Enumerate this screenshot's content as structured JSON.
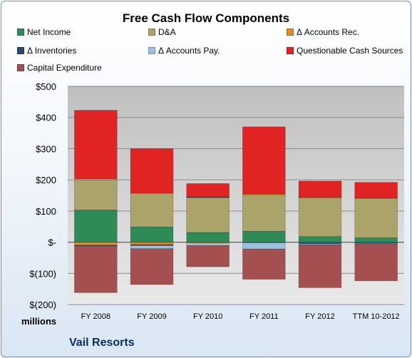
{
  "title": "Free Cash Flow Components",
  "company": "Vail Resorts",
  "units_label": "millions",
  "chart_data": {
    "type": "bar",
    "stacked": true,
    "title": "Free Cash Flow Components",
    "categories": [
      "FY 2008",
      "FY 2009",
      "FY 2010",
      "FY 2011",
      "FY 2012",
      "TTM 10-2012"
    ],
    "ylim": [
      -200,
      500
    ],
    "yticks": [
      -200,
      -100,
      0,
      100,
      200,
      300,
      400,
      500
    ],
    "ytick_labels": [
      "$(200)",
      "$(100)",
      "$-",
      "$100",
      "$200",
      "$300",
      "$400",
      "$500"
    ],
    "grid": true,
    "legend_position": "top",
    "series": [
      {
        "name": "Net Income",
        "color": "#2e8a57",
        "values": [
          103,
          49,
          31,
          35,
          18,
          14
        ]
      },
      {
        "name": "D&A",
        "color": "#aaa46a",
        "values": [
          97,
          108,
          112,
          117,
          125,
          127
        ]
      },
      {
        "name": "Δ Accounts Rec.",
        "color": "#e08a2e",
        "values": [
          -10,
          -8,
          -3,
          3,
          1,
          1
        ]
      },
      {
        "name": "Δ Inventories",
        "color": "#2c4a6b",
        "values": [
          -2,
          -3,
          2,
          -2,
          -5,
          -4
        ]
      },
      {
        "name": "Δ Accounts Pay.",
        "color": "#9cc0e0",
        "values": [
          3,
          -10,
          -8,
          -20,
          -3,
          -2
        ]
      },
      {
        "name": "Questionable Cash Sources",
        "color": "#e02424",
        "values": [
          220,
          143,
          43,
          215,
          52,
          50
        ]
      },
      {
        "name": "Capital Expenditure",
        "color": "#a55050",
        "values": [
          -150,
          -115,
          -68,
          -97,
          -138,
          -118
        ]
      }
    ]
  }
}
